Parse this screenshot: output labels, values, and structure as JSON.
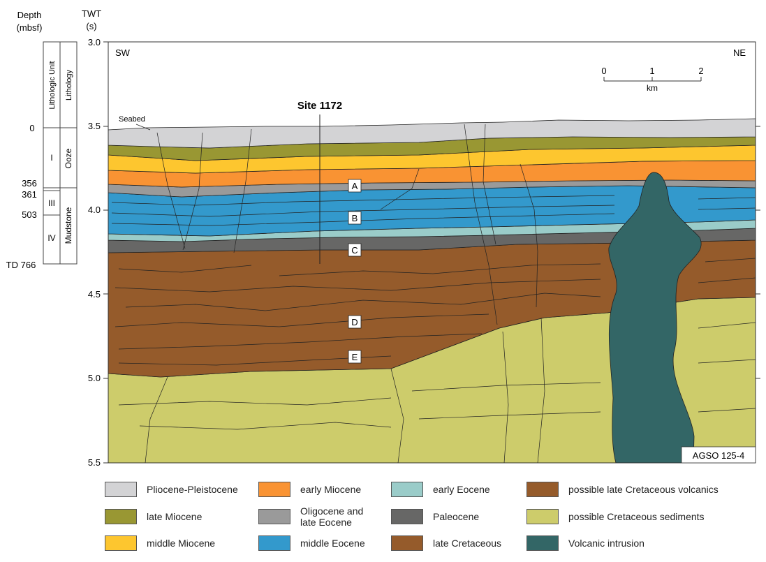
{
  "strat_column": {
    "depth_header": "Depth",
    "depth_unit": "(mbsf)",
    "col_unit_header": "Lithologic Unit",
    "col_lith_header": "Lithology",
    "depths": [
      "0",
      "356",
      "361",
      "503",
      "TD 766"
    ],
    "units": [
      "I",
      "III",
      "IV"
    ],
    "lithologies": [
      "Ooze",
      "Mudstone"
    ]
  },
  "section": {
    "y_axis_header": "TWT",
    "y_axis_unit": "(s)",
    "y_ticks": [
      "3.0",
      "3.5",
      "4.0",
      "4.5",
      "5.0",
      "5.5"
    ],
    "sw_label": "SW",
    "ne_label": "NE",
    "seabed_label": "Seabed",
    "site_label": "Site 1172",
    "horizons": [
      "A",
      "B",
      "C",
      "D",
      "E"
    ],
    "survey_label": "AGSO 125-4",
    "scale_ticks": [
      "0",
      "1",
      "2"
    ],
    "scale_unit": "km"
  },
  "colors": {
    "pliocene_pleistocene": "#d3d3d5",
    "late_miocene": "#999733",
    "middle_miocene": "#fdc62f",
    "early_miocene": "#f99333",
    "oligocene_late_eocene": "#9a9a9a",
    "middle_eocene": "#3399cc",
    "early_eocene": "#9accc9",
    "paleocene": "#676766",
    "late_cretaceous": "#955b2b",
    "cretaceous_sediments": "#cdcc6b",
    "volcanic_intrusion": "#336666"
  },
  "legend": [
    {
      "label": "Pliocene-Pleistocene",
      "color": "#d3d3d5"
    },
    {
      "label": "late Miocene",
      "color": "#999733"
    },
    {
      "label": "middle Miocene",
      "color": "#fdc62f"
    },
    {
      "label": "early Miocene",
      "color": "#f99333"
    },
    {
      "label": "Oligocene and\nlate Eocene",
      "color": "#9a9a9a"
    },
    {
      "label": "middle Eocene",
      "color": "#3399cc"
    },
    {
      "label": "early  Eocene",
      "color": "#9accc9"
    },
    {
      "label": "Paleocene",
      "color": "#676766"
    },
    {
      "label": "late Cretaceous",
      "color": "#955b2b"
    },
    {
      "label": "possible late Cretaceous volcanics",
      "color": "#955b2b"
    },
    {
      "label": "possible Cretaceous sediments",
      "color": "#cdcc6b"
    },
    {
      "label": "Volcanic intrusion",
      "color": "#336666"
    }
  ]
}
